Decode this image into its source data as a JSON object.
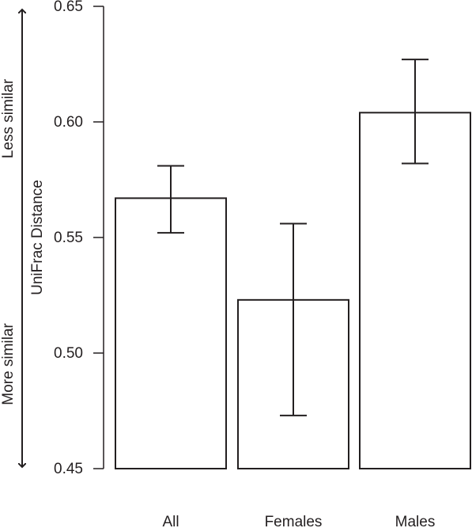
{
  "chart_data": {
    "type": "bar",
    "categories": [
      "All",
      "Females",
      "Males"
    ],
    "values": [
      0.567,
      0.523,
      0.604
    ],
    "error_low": [
      0.552,
      0.473,
      0.582
    ],
    "error_high": [
      0.581,
      0.556,
      0.627
    ],
    "title": "",
    "xlabel": "",
    "ylabel": "UniFrac Distance",
    "ylim": [
      0.45,
      0.65
    ],
    "yticks": [
      "0.45",
      "0.50",
      "0.55",
      "0.60",
      "0.65"
    ],
    "ytick_values": [
      0.45,
      0.5,
      0.55,
      0.6,
      0.65
    ],
    "annotations": {
      "arrow_top_label": "Less similar",
      "arrow_bottom_label": "More similar"
    },
    "grid": false,
    "bar_fill": "#ffffff",
    "ink_color": "#231f20"
  }
}
